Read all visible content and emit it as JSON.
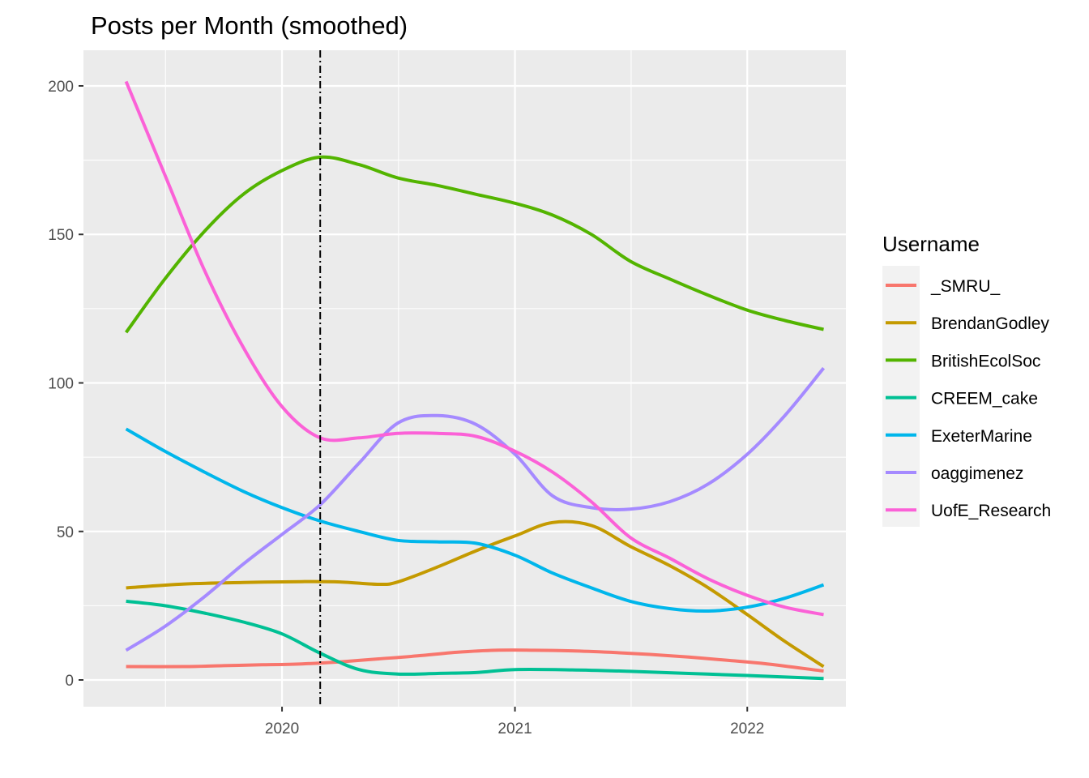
{
  "chart_data": {
    "type": "line",
    "title": "Posts per Month (smoothed)",
    "xlabel": "",
    "ylabel": "",
    "x_ticks": [
      "2020",
      "2021",
      "2022"
    ],
    "y_ticks": [
      "0",
      "50",
      "100",
      "150",
      "200"
    ],
    "xlim": [
      "2019-02-23",
      "2022-06-05"
    ],
    "ylim": [
      -9,
      212
    ],
    "grid": true,
    "legend": {
      "title": "Username",
      "position": "right"
    },
    "reference_line": {
      "x": "2020-03-01",
      "style": "dotdash",
      "color": "#000000"
    },
    "series": [
      {
        "name": "_SMRU_",
        "color": "#F8766D",
        "points": [
          [
            "2019-05-01",
            4.5
          ],
          [
            "2019-08-01",
            4.5
          ],
          [
            "2019-10-01",
            4.8
          ],
          [
            "2019-12-01",
            5.1
          ],
          [
            "2020-02-01",
            5.4
          ],
          [
            "2020-04-01",
            6.1
          ],
          [
            "2020-06-01",
            7.1
          ],
          [
            "2020-08-01",
            8.1
          ],
          [
            "2020-10-01",
            9.3
          ],
          [
            "2020-12-01",
            10
          ],
          [
            "2021-02-01",
            10
          ],
          [
            "2021-04-01",
            9.8
          ],
          [
            "2021-06-01",
            9.3
          ],
          [
            "2021-08-01",
            8.6
          ],
          [
            "2021-10-01",
            7.7
          ],
          [
            "2021-12-01",
            6.6
          ],
          [
            "2022-02-01",
            5.4
          ],
          [
            "2022-05-01",
            3.0
          ]
        ]
      },
      {
        "name": "BrendanGodley",
        "color": "#C49A00",
        "points": [
          [
            "2019-05-01",
            31
          ],
          [
            "2019-08-01",
            32.3
          ],
          [
            "2019-11-01",
            32.8
          ],
          [
            "2020-02-01",
            33.1
          ],
          [
            "2020-04-01",
            33
          ],
          [
            "2020-06-01",
            32.2
          ],
          [
            "2020-07-01",
            33
          ],
          [
            "2020-09-01",
            38
          ],
          [
            "2020-11-01",
            43.5
          ],
          [
            "2021-01-01",
            48.5
          ],
          [
            "2021-03-01",
            53
          ],
          [
            "2021-05-01",
            52
          ],
          [
            "2021-07-01",
            45
          ],
          [
            "2021-09-01",
            38.5
          ],
          [
            "2021-11-01",
            31
          ],
          [
            "2022-01-01",
            22
          ],
          [
            "2022-03-01",
            13
          ],
          [
            "2022-05-01",
            4.5
          ]
        ]
      },
      {
        "name": "BritishEcolSoc",
        "color": "#53B400",
        "points": [
          [
            "2019-05-01",
            117
          ],
          [
            "2019-07-01",
            135
          ],
          [
            "2019-09-01",
            151
          ],
          [
            "2019-11-01",
            163.5
          ],
          [
            "2020-01-01",
            171.5
          ],
          [
            "2020-03-01",
            176
          ],
          [
            "2020-05-01",
            173.5
          ],
          [
            "2020-07-01",
            169
          ],
          [
            "2020-09-01",
            166.5
          ],
          [
            "2020-11-01",
            163.5
          ],
          [
            "2021-01-01",
            160.5
          ],
          [
            "2021-03-01",
            156.5
          ],
          [
            "2021-05-01",
            150
          ],
          [
            "2021-07-01",
            141
          ],
          [
            "2021-09-01",
            135
          ],
          [
            "2021-11-01",
            129.5
          ],
          [
            "2022-01-01",
            124.5
          ],
          [
            "2022-03-01",
            121
          ],
          [
            "2022-05-01",
            118
          ]
        ]
      },
      {
        "name": "CREEM_cake",
        "color": "#00C094",
        "points": [
          [
            "2019-05-01",
            26.5
          ],
          [
            "2019-07-01",
            25
          ],
          [
            "2019-09-01",
            22.5
          ],
          [
            "2019-11-01",
            19.5
          ],
          [
            "2020-01-01",
            15.5
          ],
          [
            "2020-03-01",
            9
          ],
          [
            "2020-05-01",
            3.5
          ],
          [
            "2020-07-01",
            2.0
          ],
          [
            "2020-09-01",
            2.2
          ],
          [
            "2020-11-01",
            2.5
          ],
          [
            "2021-01-01",
            3.5
          ],
          [
            "2021-04-01",
            3.4
          ],
          [
            "2021-07-01",
            2.9
          ],
          [
            "2021-10-01",
            2.2
          ],
          [
            "2022-01-01",
            1.5
          ],
          [
            "2022-05-01",
            0.5
          ]
        ]
      },
      {
        "name": "ExeterMarine",
        "color": "#00B6EB",
        "points": [
          [
            "2019-05-01",
            84.5
          ],
          [
            "2019-07-01",
            77
          ],
          [
            "2019-09-01",
            70
          ],
          [
            "2019-11-01",
            63.5
          ],
          [
            "2020-01-01",
            58
          ],
          [
            "2020-03-01",
            53.5
          ],
          [
            "2020-05-01",
            50
          ],
          [
            "2020-07-01",
            47
          ],
          [
            "2020-09-01",
            46.5
          ],
          [
            "2020-11-01",
            46
          ],
          [
            "2021-01-01",
            42
          ],
          [
            "2021-03-01",
            36
          ],
          [
            "2021-05-01",
            31
          ],
          [
            "2021-07-01",
            26.5
          ],
          [
            "2021-09-01",
            24
          ],
          [
            "2021-11-01",
            23.2
          ],
          [
            "2022-01-01",
            24.5
          ],
          [
            "2022-03-01",
            27.5
          ],
          [
            "2022-05-01",
            32
          ]
        ]
      },
      {
        "name": "oaggimenez",
        "color": "#A58AFF",
        "points": [
          [
            "2019-05-01",
            10
          ],
          [
            "2019-07-01",
            18
          ],
          [
            "2019-09-01",
            28
          ],
          [
            "2019-11-01",
            39
          ],
          [
            "2020-01-01",
            49
          ],
          [
            "2020-03-01",
            59
          ],
          [
            "2020-05-01",
            73
          ],
          [
            "2020-07-01",
            86.5
          ],
          [
            "2020-09-01",
            89
          ],
          [
            "2020-11-01",
            86
          ],
          [
            "2021-01-01",
            76
          ],
          [
            "2021-03-01",
            62
          ],
          [
            "2021-05-01",
            58
          ],
          [
            "2021-07-01",
            57.5
          ],
          [
            "2021-09-01",
            60
          ],
          [
            "2021-11-01",
            66
          ],
          [
            "2022-01-01",
            76
          ],
          [
            "2022-03-01",
            89
          ],
          [
            "2022-05-01",
            105
          ]
        ]
      },
      {
        "name": "UofE_Research",
        "color": "#FB61D7",
        "points": [
          [
            "2019-05-01",
            201.5
          ],
          [
            "2019-07-01",
            170
          ],
          [
            "2019-09-01",
            138
          ],
          [
            "2019-11-01",
            112
          ],
          [
            "2020-01-01",
            92
          ],
          [
            "2020-03-01",
            81.5
          ],
          [
            "2020-05-01",
            81.5
          ],
          [
            "2020-07-01",
            83
          ],
          [
            "2020-09-01",
            83
          ],
          [
            "2020-11-01",
            82
          ],
          [
            "2021-01-01",
            77
          ],
          [
            "2021-03-01",
            70
          ],
          [
            "2021-05-01",
            60
          ],
          [
            "2021-07-01",
            48
          ],
          [
            "2021-09-01",
            41
          ],
          [
            "2021-11-01",
            34
          ],
          [
            "2022-01-01",
            28.5
          ],
          [
            "2022-03-01",
            24.5
          ],
          [
            "2022-05-01",
            22
          ]
        ]
      }
    ]
  }
}
